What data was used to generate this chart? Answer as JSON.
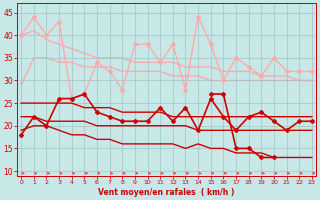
{
  "x": [
    0,
    1,
    2,
    3,
    4,
    5,
    6,
    7,
    8,
    9,
    10,
    11,
    12,
    13,
    14,
    15,
    16,
    17,
    18,
    19,
    20,
    21,
    22,
    23
  ],
  "series": [
    {
      "name": "trend_upper_light",
      "y": [
        40,
        41,
        39,
        38,
        37,
        36,
        35,
        35,
        35,
        34,
        34,
        34,
        34,
        33,
        33,
        33,
        32,
        32,
        32,
        31,
        31,
        31,
        30,
        30
      ],
      "color": "#ffaaaa",
      "lw": 1.0,
      "marker": null,
      "zorder": 1
    },
    {
      "name": "trend_lower_light",
      "y": [
        29,
        35,
        35,
        34,
        34,
        33,
        33,
        33,
        32,
        32,
        32,
        32,
        31,
        31,
        31,
        30,
        30,
        30,
        30,
        30,
        30,
        30,
        30,
        30
      ],
      "color": "#ffaaaa",
      "lw": 1.0,
      "marker": null,
      "zorder": 1
    },
    {
      "name": "rafales_light",
      "y": [
        40,
        44,
        40,
        43,
        26,
        27,
        34,
        32,
        28,
        38,
        38,
        34,
        38,
        28,
        44,
        38,
        30,
        35,
        33,
        31,
        35,
        32,
        32,
        32
      ],
      "color": "#ffaaaa",
      "lw": 1.0,
      "marker": "D",
      "ms": 2.0,
      "zorder": 2
    },
    {
      "name": "trend_upper_dark",
      "y": [
        25,
        25,
        25,
        25,
        25,
        24,
        24,
        24,
        23,
        23,
        23,
        23,
        22,
        22,
        22,
        22,
        22,
        22,
        22,
        22,
        22,
        22,
        22,
        22
      ],
      "color": "#cc0000",
      "lw": 1.0,
      "marker": null,
      "zorder": 3
    },
    {
      "name": "trend_mid_dark",
      "y": [
        22,
        22,
        21,
        21,
        21,
        21,
        20,
        20,
        20,
        20,
        20,
        20,
        20,
        20,
        19,
        19,
        19,
        19,
        19,
        19,
        19,
        19,
        19,
        19
      ],
      "color": "#cc0000",
      "lw": 1.0,
      "marker": null,
      "zorder": 3
    },
    {
      "name": "trend_lower_dark",
      "y": [
        19,
        20,
        20,
        19,
        18,
        18,
        17,
        17,
        16,
        16,
        16,
        16,
        16,
        15,
        16,
        15,
        15,
        14,
        14,
        14,
        13,
        13,
        13,
        13
      ],
      "color": "#cc0000",
      "lw": 1.0,
      "marker": null,
      "zorder": 3
    },
    {
      "name": "moyen_dark",
      "y": [
        18,
        22,
        20,
        26,
        26,
        27,
        23,
        22,
        21,
        21,
        21,
        24,
        21,
        24,
        19,
        26,
        22,
        19,
        22,
        23,
        21,
        19,
        21,
        21
      ],
      "color": "#cc0000",
      "lw": 1.2,
      "marker": "D",
      "ms": 2.0,
      "zorder": 4
    },
    {
      "name": "rafales_dark",
      "y": [
        null,
        null,
        null,
        null,
        null,
        null,
        null,
        null,
        null,
        null,
        null,
        null,
        null,
        null,
        null,
        27,
        27,
        15,
        15,
        13,
        13,
        null,
        null,
        null
      ],
      "color": "#cc0000",
      "lw": 1.2,
      "marker": "D",
      "ms": 2.0,
      "zorder": 4
    }
  ],
  "xlim": [
    -0.3,
    23.3
  ],
  "ylim": [
    9,
    47
  ],
  "yticks": [
    10,
    15,
    20,
    25,
    30,
    35,
    40,
    45
  ],
  "xtick_labels": [
    "0",
    "1",
    "2",
    "3",
    "4",
    "5",
    "6",
    "7",
    "8",
    "9",
    "10",
    "11",
    "12",
    "13",
    "14",
    "15",
    "16",
    "17",
    "18",
    "19",
    "20",
    "21",
    "22",
    "23"
  ],
  "xlabel": "Vent moyen/en rafales  ( km/h )",
  "bg_color": "#c8e8e8",
  "grid_color": "#a0c4c4",
  "arrow_color": "#ff2222",
  "spine_color": "#cc0000"
}
